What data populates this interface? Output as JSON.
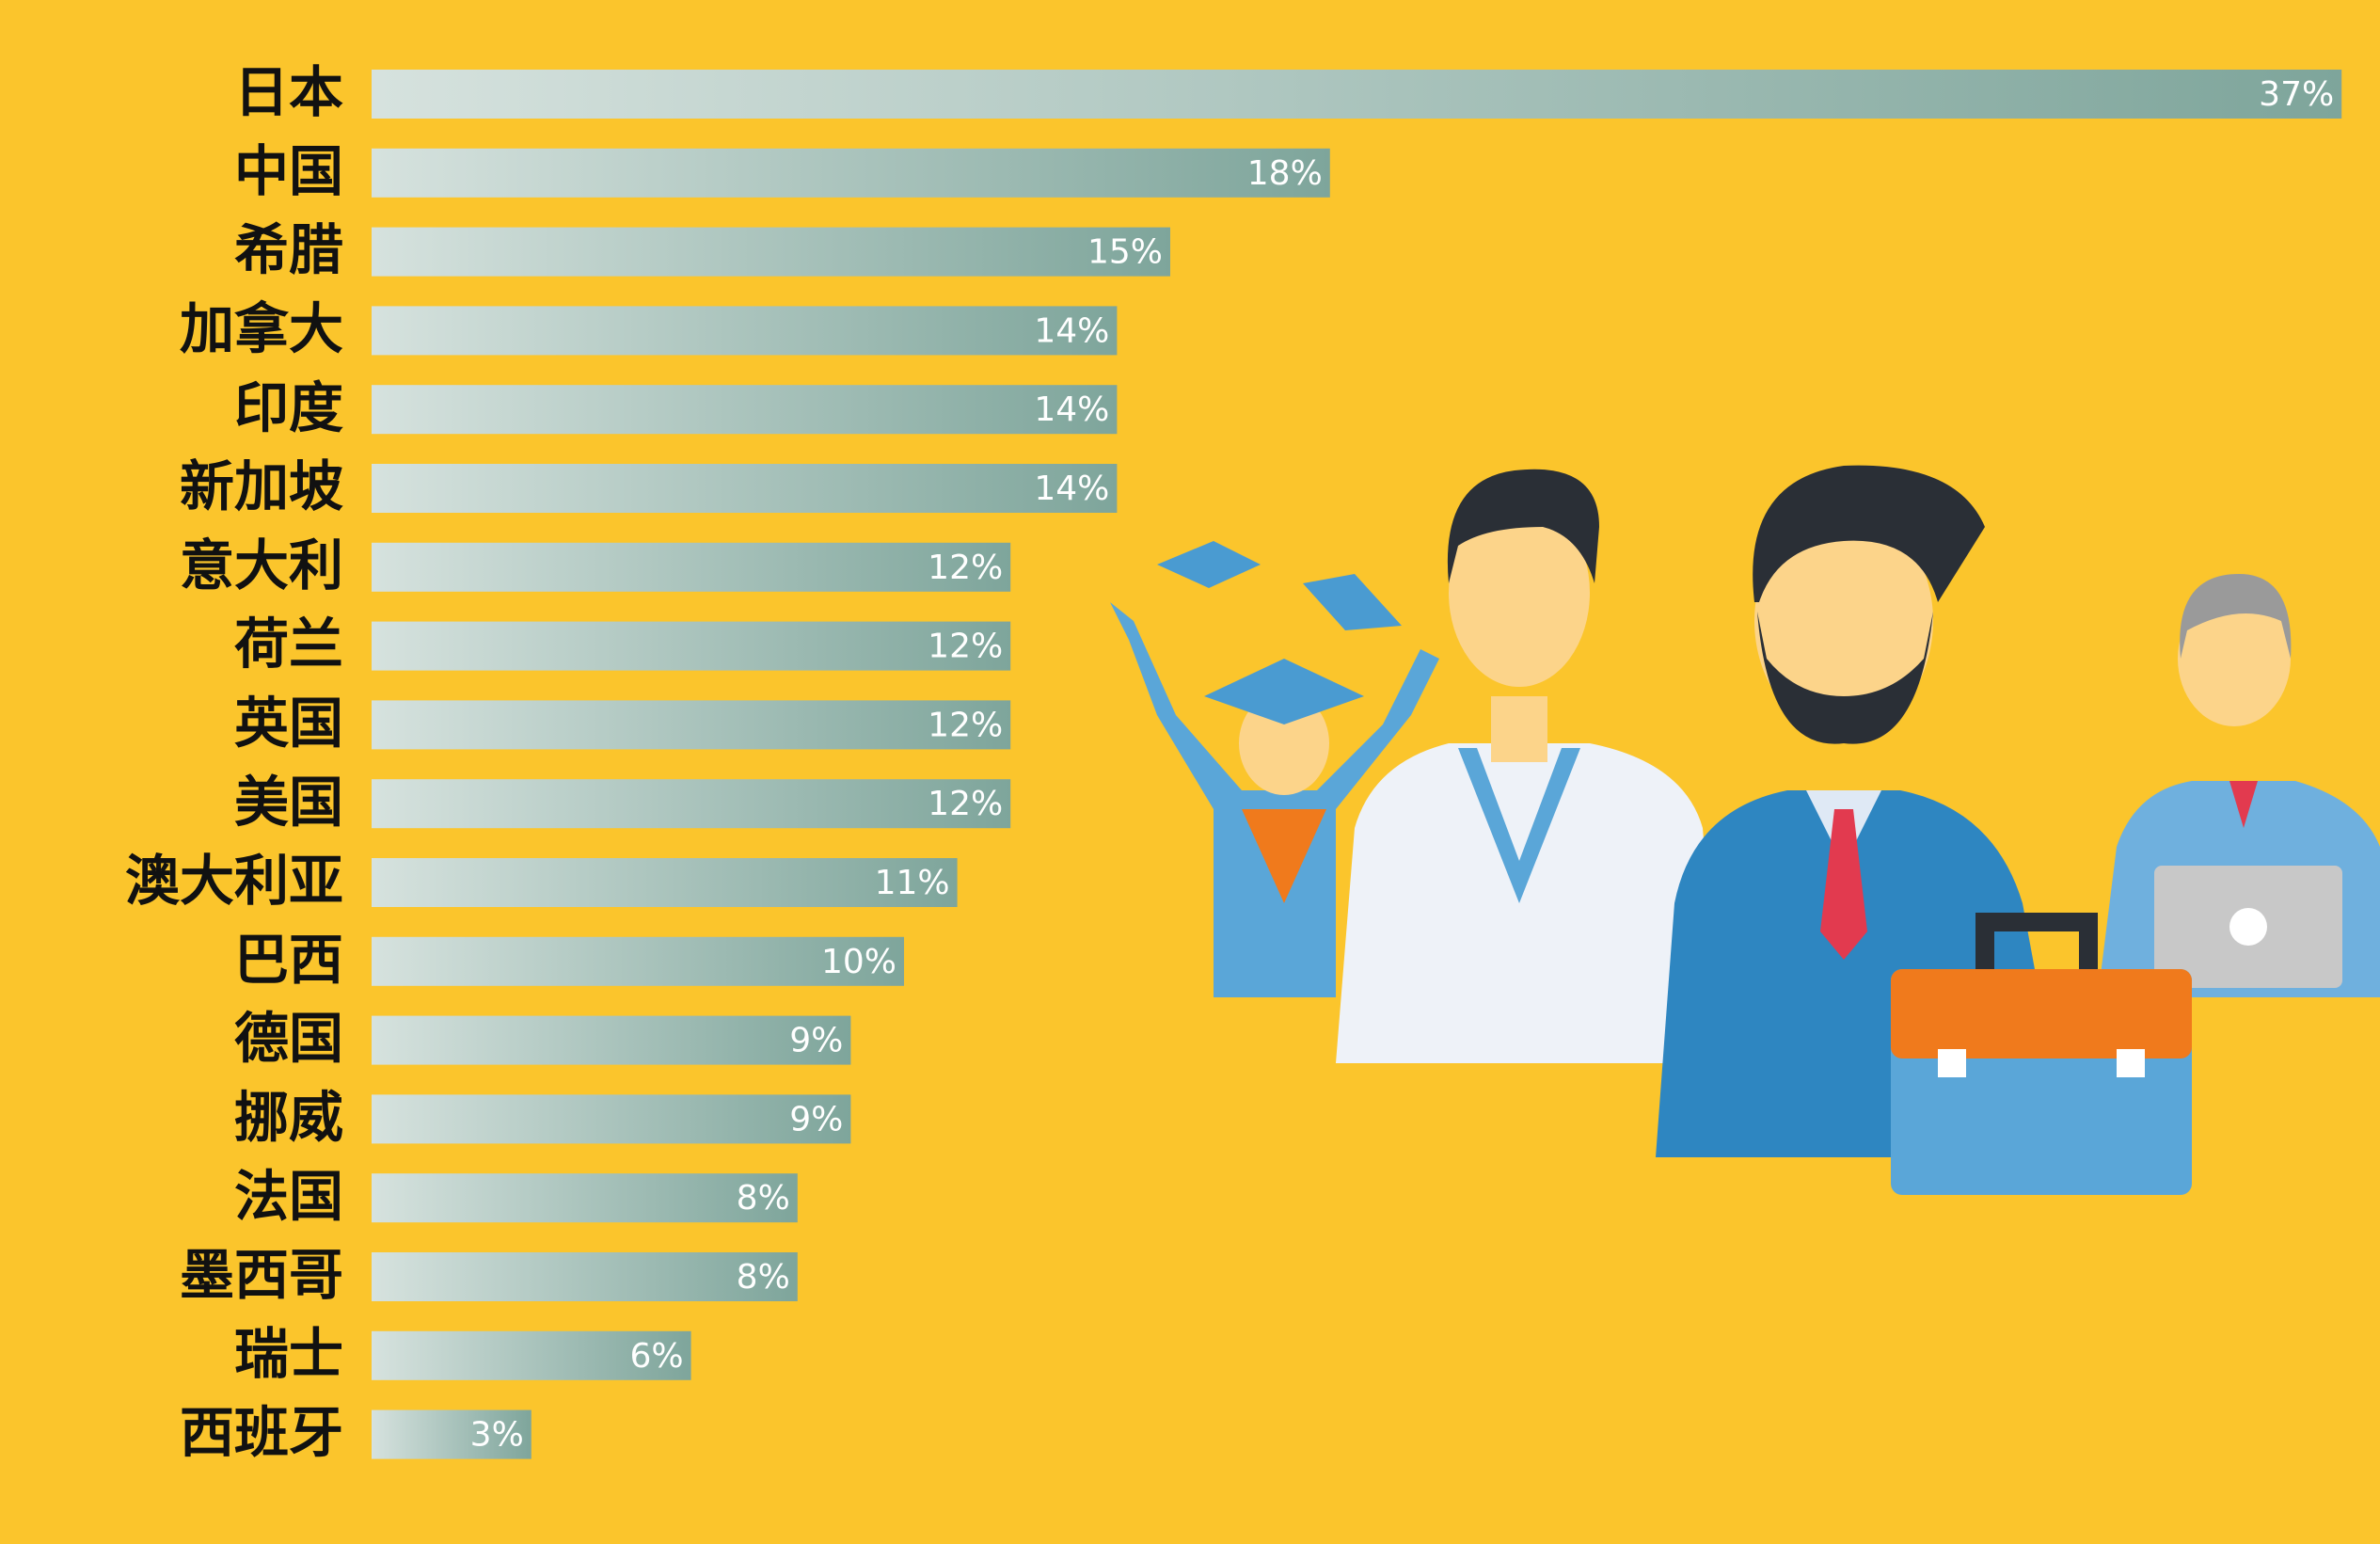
{
  "chart_data": {
    "type": "bar",
    "orientation": "horizontal",
    "categories": [
      "日本",
      "中国",
      "希腊",
      "加拿大",
      "印度",
      "新加坡",
      "意大利",
      "荷兰",
      "英国",
      "美国",
      "澳大利亚",
      "巴西",
      "德国",
      "挪威",
      "法国",
      "墨西哥",
      "瑞士",
      "西班牙"
    ],
    "values": [
      37,
      18,
      15,
      14,
      14,
      14,
      12,
      12,
      12,
      12,
      11,
      10,
      9,
      9,
      8,
      8,
      6,
      3
    ],
    "value_labels": [
      "37%",
      "18%",
      "15%",
      "14%",
      "14%",
      "14%",
      "12%",
      "12%",
      "12%",
      "12%",
      "11%",
      "10%",
      "9%",
      "9%",
      "8%",
      "8%",
      "6%",
      "3%"
    ],
    "colors": [
      "#d6e2de",
      "#7ea59b"
    ]
  }
}
